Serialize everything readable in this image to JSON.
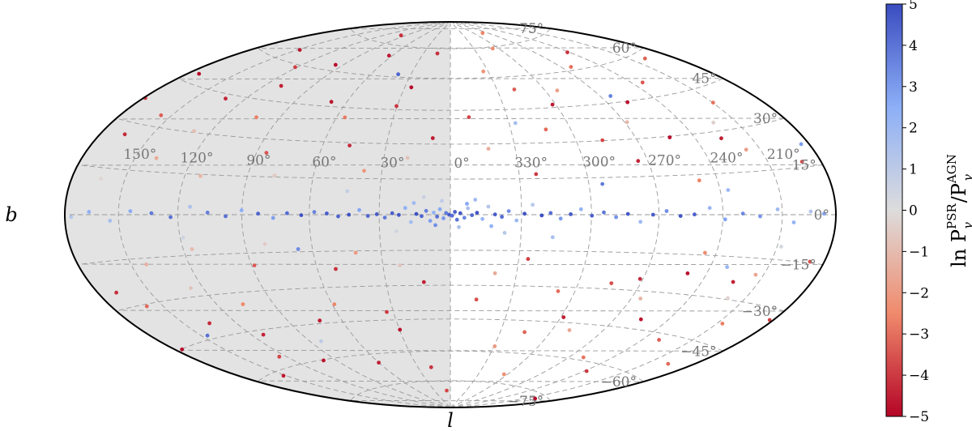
{
  "chart_data": {
    "type": "scatter",
    "projection": "Hammer-Aitoff (Galactic)",
    "xlabel": "l",
    "ylabel": "b",
    "longitude_ticks": [
      "150°",
      "120°",
      "90°",
      "60°",
      "30°",
      "0°",
      "330°",
      "300°",
      "270°",
      "240°",
      "210°"
    ],
    "longitude_tick_values": [
      150,
      120,
      90,
      60,
      30,
      0,
      -30,
      -60,
      -90,
      -120,
      -150
    ],
    "latitude_ticks": [
      "75°",
      "60°",
      "45°",
      "30°",
      "15°",
      "0°",
      "−15°",
      "−30°",
      "−45°",
      "−60°",
      "−75°"
    ],
    "latitude_tick_values": [
      75,
      60,
      45,
      30,
      15,
      0,
      -15,
      -30,
      -45,
      -60,
      -75
    ],
    "shaded_region": {
      "l_from": 0,
      "l_to": 180,
      "color": "#e3e3e3"
    },
    "grid": true,
    "colorbar": {
      "label": "ln P_γ^PSR / P_γ^AGN",
      "label_main": "ln P",
      "label_sup1": "PSR",
      "label_sub": "γ",
      "label_mid": "/P",
      "label_sup2": "AGN",
      "range": [
        -5,
        5
      ],
      "ticks": [
        "5",
        "4",
        "3",
        "2",
        "1",
        "0",
        "−1",
        "−2",
        "−3",
        "−4",
        "−5"
      ],
      "tick_values": [
        5,
        4,
        3,
        2,
        1,
        0,
        -1,
        -2,
        -3,
        -4,
        -5
      ],
      "colormap": "coolwarm_r",
      "stops": [
        "#b40426",
        "#f08a6c",
        "#dddcdc",
        "#8caff7",
        "#3b4cc0"
      ],
      "location": "right"
    },
    "points": [
      {
        "l": 0.5,
        "b": 0.0,
        "v": 4.6
      },
      {
        "l": 359.3,
        "b": -0.4,
        "v": 4.2
      },
      {
        "l": 1.8,
        "b": 0.7,
        "v": 3.8
      },
      {
        "l": 358.1,
        "b": 1.2,
        "v": 4.5
      },
      {
        "l": 2.9,
        "b": -1.5,
        "v": 3.1
      },
      {
        "l": 357.2,
        "b": -2.1,
        "v": 4.0
      },
      {
        "l": 4.4,
        "b": 2.3,
        "v": 2.6
      },
      {
        "l": 355.8,
        "b": 0.6,
        "v": 4.7
      },
      {
        "l": 5.6,
        "b": -0.8,
        "v": 4.1
      },
      {
        "l": 354.1,
        "b": -1.3,
        "v": 3.5
      },
      {
        "l": 7.0,
        "b": 0.9,
        "v": 2.2
      },
      {
        "l": 352.6,
        "b": 2.7,
        "v": 1.6
      },
      {
        "l": 8.5,
        "b": -2.6,
        "v": 2.9
      },
      {
        "l": 350.9,
        "b": -0.2,
        "v": 4.3
      },
      {
        "l": 10.2,
        "b": 1.6,
        "v": 3.7
      },
      {
        "l": 348.8,
        "b": 0.8,
        "v": 4.8
      },
      {
        "l": 12.1,
        "b": -0.6,
        "v": 4.4
      },
      {
        "l": 346.5,
        "b": -1.8,
        "v": 2.1
      },
      {
        "l": 14.3,
        "b": 0.3,
        "v": 4.9
      },
      {
        "l": 344.0,
        "b": 3.4,
        "v": 1.2
      },
      {
        "l": 16.6,
        "b": -3.1,
        "v": 1.8
      },
      {
        "l": 341.2,
        "b": 0.1,
        "v": 4.6
      },
      {
        "l": 19.0,
        "b": 2.8,
        "v": 2.4
      },
      {
        "l": 338.3,
        "b": -0.9,
        "v": 4.2
      },
      {
        "l": 21.7,
        "b": -0.1,
        "v": 4.7
      },
      {
        "l": 335.4,
        "b": 1.5,
        "v": 3.3
      },
      {
        "l": 24.5,
        "b": 0.6,
        "v": 4.5
      },
      {
        "l": 332.1,
        "b": -2.4,
        "v": 2.0
      },
      {
        "l": 27.6,
        "b": -1.2,
        "v": 3.9
      },
      {
        "l": 328.7,
        "b": 0.4,
        "v": 4.8
      },
      {
        "l": 31.0,
        "b": 0.2,
        "v": 4.6
      },
      {
        "l": 325.2,
        "b": 4.1,
        "v": 1.1
      },
      {
        "l": 34.8,
        "b": -0.5,
        "v": 4.3
      },
      {
        "l": 321.4,
        "b": -0.3,
        "v": 4.9
      },
      {
        "l": 38.5,
        "b": 1.9,
        "v": 2.7
      },
      {
        "l": 317.6,
        "b": 0.7,
        "v": 4.1
      },
      {
        "l": 42.9,
        "b": 0.0,
        "v": 4.8
      },
      {
        "l": 313.3,
        "b": -1.6,
        "v": 3.0
      },
      {
        "l": 47.5,
        "b": -0.7,
        "v": 4.4
      },
      {
        "l": 309.0,
        "b": 0.2,
        "v": 4.7
      },
      {
        "l": 52.4,
        "b": 0.5,
        "v": 4.6
      },
      {
        "l": 304.5,
        "b": 2.2,
        "v": 2.3
      },
      {
        "l": 57.8,
        "b": 1.1,
        "v": 3.6
      },
      {
        "l": 299.8,
        "b": -0.4,
        "v": 4.5
      },
      {
        "l": 63.5,
        "b": -0.2,
        "v": 4.8
      },
      {
        "l": 294.6,
        "b": 0.9,
        "v": 3.9
      },
      {
        "l": 69.7,
        "b": 0.6,
        "v": 4.2
      },
      {
        "l": 289.2,
        "b": -1.0,
        "v": 3.2
      },
      {
        "l": 75.9,
        "b": -1.3,
        "v": 2.9
      },
      {
        "l": 284.0,
        "b": 0.3,
        "v": 4.7
      },
      {
        "l": 82.6,
        "b": 0.4,
        "v": 4.4
      },
      {
        "l": 278.3,
        "b": -2.8,
        "v": 1.9
      },
      {
        "l": 90.1,
        "b": 1.7,
        "v": 2.5
      },
      {
        "l": 272.7,
        "b": 0.0,
        "v": 4.6
      },
      {
        "l": 97.4,
        "b": -0.6,
        "v": 4.1
      },
      {
        "l": 266.5,
        "b": 1.4,
        "v": 3.3
      },
      {
        "l": 105.8,
        "b": 0.8,
        "v": 3.7
      },
      {
        "l": 260.1,
        "b": -0.5,
        "v": 4.8
      },
      {
        "l": 114.2,
        "b": 2.9,
        "v": 1.5
      },
      {
        "l": 253.6,
        "b": 0.1,
        "v": 4.5
      },
      {
        "l": 123.5,
        "b": -0.9,
        "v": 4.0
      },
      {
        "l": 246.3,
        "b": 2.5,
        "v": 2.1
      },
      {
        "l": 133.0,
        "b": 0.5,
        "v": 3.9
      },
      {
        "l": 238.9,
        "b": -1.7,
        "v": 2.8
      },
      {
        "l": 143.8,
        "b": 1.2,
        "v": 2.6
      },
      {
        "l": 230.2,
        "b": 0.4,
        "v": 3.5
      },
      {
        "l": 154.6,
        "b": -2.0,
        "v": 1.7
      },
      {
        "l": 221.5,
        "b": -0.6,
        "v": 3.1
      },
      {
        "l": 166.1,
        "b": 0.9,
        "v": 2.4
      },
      {
        "l": 212.4,
        "b": 1.8,
        "v": 1.9
      },
      {
        "l": 176.3,
        "b": -0.7,
        "v": 1.3
      },
      {
        "l": 203.7,
        "b": -2.5,
        "v": 2.2
      },
      {
        "l": 186.9,
        "b": 0.3,
        "v": 2.8
      },
      {
        "l": 194.5,
        "b": 1.0,
        "v": 1.4
      },
      {
        "l": 3.6,
        "b": 5.8,
        "v": 0.9
      },
      {
        "l": 356.4,
        "b": -5.2,
        "v": 1.5
      },
      {
        "l": 11.2,
        "b": 7.4,
        "v": 0.6
      },
      {
        "l": 349.5,
        "b": 6.3,
        "v": 1.8
      },
      {
        "l": 22.8,
        "b": -6.9,
        "v": 0.4
      },
      {
        "l": 337.0,
        "b": -7.6,
        "v": 1.1
      },
      {
        "l": 6.3,
        "b": -4.4,
        "v": 3.3
      },
      {
        "l": 353.0,
        "b": 4.6,
        "v": 2.7
      },
      {
        "l": 15.4,
        "b": 4.9,
        "v": 1.9
      },
      {
        "l": 342.7,
        "b": -4.8,
        "v": 2.3
      },
      {
        "l": 8.4,
        "b": 32.6,
        "v": -4.6
      },
      {
        "l": 350.2,
        "b": 41.9,
        "v": -3.8
      },
      {
        "l": 25.7,
        "b": 55.4,
        "v": -4.9
      },
      {
        "l": 333.8,
        "b": 63.1,
        "v": -2.2
      },
      {
        "l": 47.2,
        "b": 28.8,
        "v": -4.3
      },
      {
        "l": 312.5,
        "b": 35.7,
        "v": -3.1
      },
      {
        "l": 68.9,
        "b": 47.0,
        "v": -4.7
      },
      {
        "l": 292.4,
        "b": 52.3,
        "v": -1.8
      },
      {
        "l": 85.3,
        "b": 24.5,
        "v": -3.5
      },
      {
        "l": 274.6,
        "b": 21.2,
        "v": -4.4
      },
      {
        "l": 102.7,
        "b": 38.1,
        "v": -2.7
      },
      {
        "l": 258.1,
        "b": 44.6,
        "v": -4.8
      },
      {
        "l": 121.4,
        "b": 58.9,
        "v": -3.9
      },
      {
        "l": 241.8,
        "b": 67.2,
        "v": -4.1
      },
      {
        "l": 138.6,
        "b": 19.8,
        "v": -1.5
      },
      {
        "l": 226.3,
        "b": 27.4,
        "v": -4.5
      },
      {
        "l": 156.2,
        "b": 33.9,
        "v": -3.3
      },
      {
        "l": 209.7,
        "b": 39.5,
        "v": -2.9
      },
      {
        "l": 172.9,
        "b": 48.2,
        "v": -4.9
      },
      {
        "l": 191.1,
        "b": 16.7,
        "v": -3.6
      },
      {
        "l": 14.6,
        "b": 72.4,
        "v": -4.2
      },
      {
        "l": 306.8,
        "b": 74.1,
        "v": -2.4
      },
      {
        "l": 63.2,
        "b": 69.8,
        "v": -4.6
      },
      {
        "l": 262.5,
        "b": 61.5,
        "v": -3.0
      },
      {
        "l": 37.9,
        "b": 18.3,
        "v": -2.1
      },
      {
        "l": 322.6,
        "b": 16.9,
        "v": -4.0
      },
      {
        "l": 95.8,
        "b": 62.7,
        "v": -4.8
      },
      {
        "l": 287.1,
        "b": 30.2,
        "v": -3.7
      },
      {
        "l": 112.3,
        "b": 14.4,
        "v": -1.2
      },
      {
        "l": 248.9,
        "b": 12.8,
        "v": -2.6
      },
      {
        "l": 131.7,
        "b": 43.3,
        "v": -4.4
      },
      {
        "l": 233.0,
        "b": 50.9,
        "v": -3.4
      },
      {
        "l": 148.4,
        "b": 64.6,
        "v": -4.7
      },
      {
        "l": 217.6,
        "b": 22.6,
        "v": -1.9
      },
      {
        "l": 165.5,
        "b": 26.1,
        "v": -4.3
      },
      {
        "l": 199.2,
        "b": 57.7,
        "v": -3.2
      },
      {
        "l": 178.8,
        "b": 37.4,
        "v": -4.0
      },
      {
        "l": 55.6,
        "b": 40.7,
        "v": -2.8
      },
      {
        "l": 301.9,
        "b": 46.3,
        "v": -4.6
      },
      {
        "l": 19.3,
        "b": 24.0,
        "v": -0.8
      },
      {
        "l": 342.4,
        "b": 27.9,
        "v": -1.4
      },
      {
        "l": 77.5,
        "b": 15.6,
        "v": -0.6
      },
      {
        "l": 268.7,
        "b": 36.8,
        "v": -1.1
      },
      {
        "l": 129.1,
        "b": 30.5,
        "v": -0.9
      },
      {
        "l": 222.9,
        "b": 33.1,
        "v": -0.4
      },
      {
        "l": 30.4,
        "b": 46.6,
        "v": -4.1
      },
      {
        "l": 318.9,
        "b": 54.0,
        "v": -3.3
      },
      {
        "l": 109.6,
        "b": 51.2,
        "v": -4.5
      },
      {
        "l": 252.7,
        "b": 29.6,
        "v": -4.9
      },
      {
        "l": 12.3,
        "b": -28.6,
        "v": -4.5
      },
      {
        "l": 347.1,
        "b": -36.2,
        "v": -3.6
      },
      {
        "l": 29.8,
        "b": -49.5,
        "v": -4.8
      },
      {
        "l": 329.5,
        "b": -57.3,
        "v": -2.0
      },
      {
        "l": 51.6,
        "b": -22.4,
        "v": -4.2
      },
      {
        "l": 308.2,
        "b": -31.8,
        "v": -3.0
      },
      {
        "l": 72.3,
        "b": -43.7,
        "v": -4.6
      },
      {
        "l": 289.8,
        "b": -48.1,
        "v": -1.6
      },
      {
        "l": 88.7,
        "b": -19.9,
        "v": -3.4
      },
      {
        "l": 271.4,
        "b": -25.3,
        "v": -4.3
      },
      {
        "l": 106.1,
        "b": -34.6,
        "v": -2.5
      },
      {
        "l": 255.3,
        "b": -41.0,
        "v": -4.7
      },
      {
        "l": 124.8,
        "b": -55.8,
        "v": -3.8
      },
      {
        "l": 238.2,
        "b": -63.5,
        "v": -4.0
      },
      {
        "l": 141.9,
        "b": -17.2,
        "v": -1.3
      },
      {
        "l": 223.7,
        "b": -23.8,
        "v": -4.4
      },
      {
        "l": 159.3,
        "b": -30.7,
        "v": -3.1
      },
      {
        "l": 206.9,
        "b": -37.9,
        "v": -2.7
      },
      {
        "l": 175.6,
        "b": -45.1,
        "v": -4.9
      },
      {
        "l": 188.4,
        "b": -14.6,
        "v": -3.5
      },
      {
        "l": 17.8,
        "b": -67.9,
        "v": -4.1
      },
      {
        "l": 303.6,
        "b": -70.4,
        "v": -2.3
      },
      {
        "l": 60.1,
        "b": -64.2,
        "v": -4.5
      },
      {
        "l": 259.8,
        "b": -58.7,
        "v": -2.9
      },
      {
        "l": 41.2,
        "b": -15.8,
        "v": -2.0
      },
      {
        "l": 325.9,
        "b": -18.5,
        "v": -3.9
      },
      {
        "l": 99.4,
        "b": -60.3,
        "v": -4.7
      },
      {
        "l": 284.2,
        "b": -27.6,
        "v": -3.6
      },
      {
        "l": 115.7,
        "b": -12.7,
        "v": -1.0
      },
      {
        "l": 245.5,
        "b": -14.1,
        "v": -2.4
      },
      {
        "l": 135.2,
        "b": -39.8,
        "v": -4.3
      },
      {
        "l": 229.9,
        "b": -47.4,
        "v": -3.3
      },
      {
        "l": 151.8,
        "b": -61.9,
        "v": -4.6
      },
      {
        "l": 214.3,
        "b": -20.6,
        "v": -1.7
      },
      {
        "l": 169.1,
        "b": -24.9,
        "v": -4.2
      },
      {
        "l": 196.0,
        "b": -53.6,
        "v": -3.1
      },
      {
        "l": 182.2,
        "b": -33.4,
        "v": -3.9
      },
      {
        "l": 58.9,
        "b": -37.2,
        "v": -2.6
      },
      {
        "l": 298.5,
        "b": -42.8,
        "v": -4.5
      },
      {
        "l": 22.4,
        "b": -21.3,
        "v": -0.7
      },
      {
        "l": 339.8,
        "b": -24.7,
        "v": -1.5
      },
      {
        "l": 80.9,
        "b": -11.6,
        "v": -0.5
      },
      {
        "l": 265.2,
        "b": -33.0,
        "v": -1.2
      },
      {
        "l": 126.5,
        "b": -26.8,
        "v": -0.8
      },
      {
        "l": 219.6,
        "b": -29.5,
        "v": -0.3
      },
      {
        "l": 33.5,
        "b": -41.4,
        "v": -4.0
      },
      {
        "l": 315.4,
        "b": -50.2,
        "v": -3.2
      },
      {
        "l": 112.9,
        "b": -46.9,
        "v": -4.4
      },
      {
        "l": 249.6,
        "b": -22.1,
        "v": -4.8
      },
      {
        "l": 6.9,
        "b": -80.3,
        "v": -3.7
      },
      {
        "l": 97.2,
        "b": 79.6,
        "v": -4.2
      },
      {
        "l": 280.5,
        "b": 82.1,
        "v": -2.6
      },
      {
        "l": 201.4,
        "b": -76.8,
        "v": -4.9
      },
      {
        "l": 44.1,
        "b": 9.7,
        "v": 0.8
      },
      {
        "l": 316.3,
        "b": -9.3,
        "v": 1.6
      },
      {
        "l": 118.6,
        "b": -8.4,
        "v": 0.5
      },
      {
        "l": 236.1,
        "b": 8.9,
        "v": 2.0
      },
      {
        "l": 163.2,
        "b": 11.5,
        "v": -0.2
      },
      {
        "l": 207.8,
        "b": -10.6,
        "v": 0.3
      },
      {
        "l": 66.4,
        "b": -13.9,
        "v": 3.4
      },
      {
        "l": 294.0,
        "b": 12.4,
        "v": 3.8
      },
      {
        "l": 184.7,
        "b": 21.9,
        "v": 2.9
      },
      {
        "l": 146.3,
        "b": -43.6,
        "v": 4.1
      },
      {
        "l": 263.8,
        "b": 47.8,
        "v": 3.6
      },
      {
        "l": 39.7,
        "b": 61.3,
        "v": 4.4
      },
      {
        "l": 231.5,
        "b": -18.8,
        "v": 2.2
      },
      {
        "l": 326.7,
        "b": 38.9,
        "v": 1.7
      },
      {
        "l": 83.1,
        "b": -52.4,
        "v": 1.0
      },
      {
        "l": 175.1,
        "b": 62.8,
        "v": 0.2
      }
    ]
  }
}
